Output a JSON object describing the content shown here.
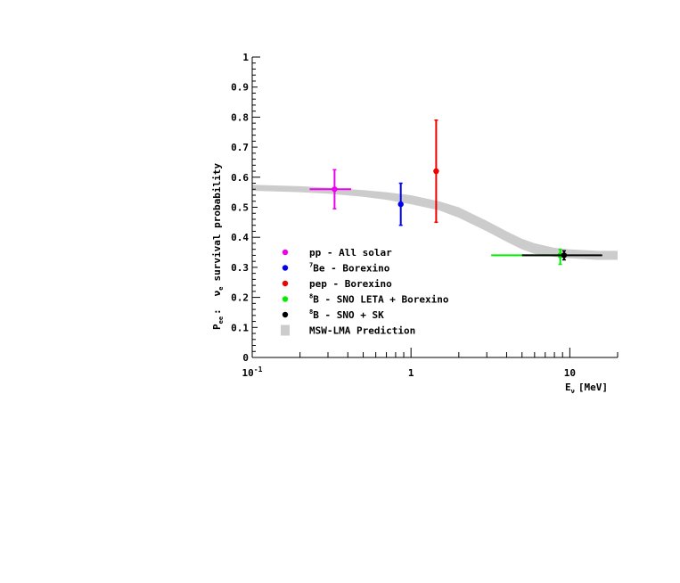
{
  "chart_data": {
    "type": "scatter",
    "title": "",
    "xlabel": "E",
    "xlabel_sub": "ν",
    "xlabel_unit": "[MeV]",
    "ylabel": "P",
    "ylabel_sub": "ee",
    "ylabel_sep": ":",
    "ylabel_nu": "ν",
    "ylabel_nu_sub": "e",
    "ylabel_text": "survival probability",
    "x_scale": "log",
    "xlim": [
      0.1,
      20
    ],
    "ylim": [
      0,
      1
    ],
    "y_ticks": [
      "0",
      "0.1",
      "0.2",
      "0.3",
      "0.4",
      "0.5",
      "0.6",
      "0.7",
      "0.8",
      "0.9",
      "1"
    ],
    "x_ticks": [
      {
        "value": 0.1,
        "base": "10",
        "exp": "-1"
      },
      {
        "value": 1,
        "base": "1",
        "exp": ""
      },
      {
        "value": 10,
        "base": "10",
        "exp": ""
      }
    ],
    "grid": false,
    "legend_position": "bottom-left",
    "series": [
      {
        "name": "pp - All solar",
        "sup": "",
        "color": "#ee00ee",
        "points": [
          {
            "x": 0.33,
            "y": 0.56,
            "xlo": 0.23,
            "xhi": 0.42,
            "ylo": 0.495,
            "yhi": 0.625
          }
        ]
      },
      {
        "name": "Be - Borexino",
        "sup": "7",
        "color": "#0000ee",
        "points": [
          {
            "x": 0.862,
            "y": 0.51,
            "xlo": 0.862,
            "xhi": 0.862,
            "ylo": 0.44,
            "yhi": 0.58
          }
        ]
      },
      {
        "name": "pep - Borexino",
        "sup": "",
        "color": "#ee0000",
        "points": [
          {
            "x": 1.44,
            "y": 0.62,
            "xlo": 1.44,
            "xhi": 1.44,
            "ylo": 0.45,
            "yhi": 0.79
          }
        ]
      },
      {
        "name": "B - SNO LETA + Borexino",
        "sup": "8",
        "color": "#00ee00",
        "points": [
          {
            "x": 8.7,
            "y": 0.34,
            "xlo": 3.2,
            "xhi": 9.3,
            "ylo": 0.31,
            "yhi": 0.36
          }
        ]
      },
      {
        "name": "B - SNO + SK",
        "sup": "8",
        "color": "#000000",
        "points": [
          {
            "x": 9.2,
            "y": 0.34,
            "xlo": 5.0,
            "xhi": 16.0,
            "ylo": 0.325,
            "yhi": 0.355
          }
        ]
      }
    ],
    "band": {
      "name": "MSW-LMA Prediction",
      "color": "#cccccc",
      "x": [
        0.1,
        0.2,
        0.3,
        0.5,
        0.7,
        1.0,
        1.5,
        2.0,
        3.0,
        4.0,
        5.0,
        6.0,
        8.0,
        10.0,
        15.0,
        20.0
      ],
      "upper": [
        0.575,
        0.57,
        0.565,
        0.557,
        0.55,
        0.54,
        0.52,
        0.5,
        0.455,
        0.42,
        0.395,
        0.38,
        0.365,
        0.36,
        0.355,
        0.355
      ],
      "lower": [
        0.555,
        0.55,
        0.545,
        0.535,
        0.525,
        0.51,
        0.49,
        0.465,
        0.42,
        0.385,
        0.36,
        0.345,
        0.335,
        0.33,
        0.325,
        0.325
      ]
    }
  }
}
